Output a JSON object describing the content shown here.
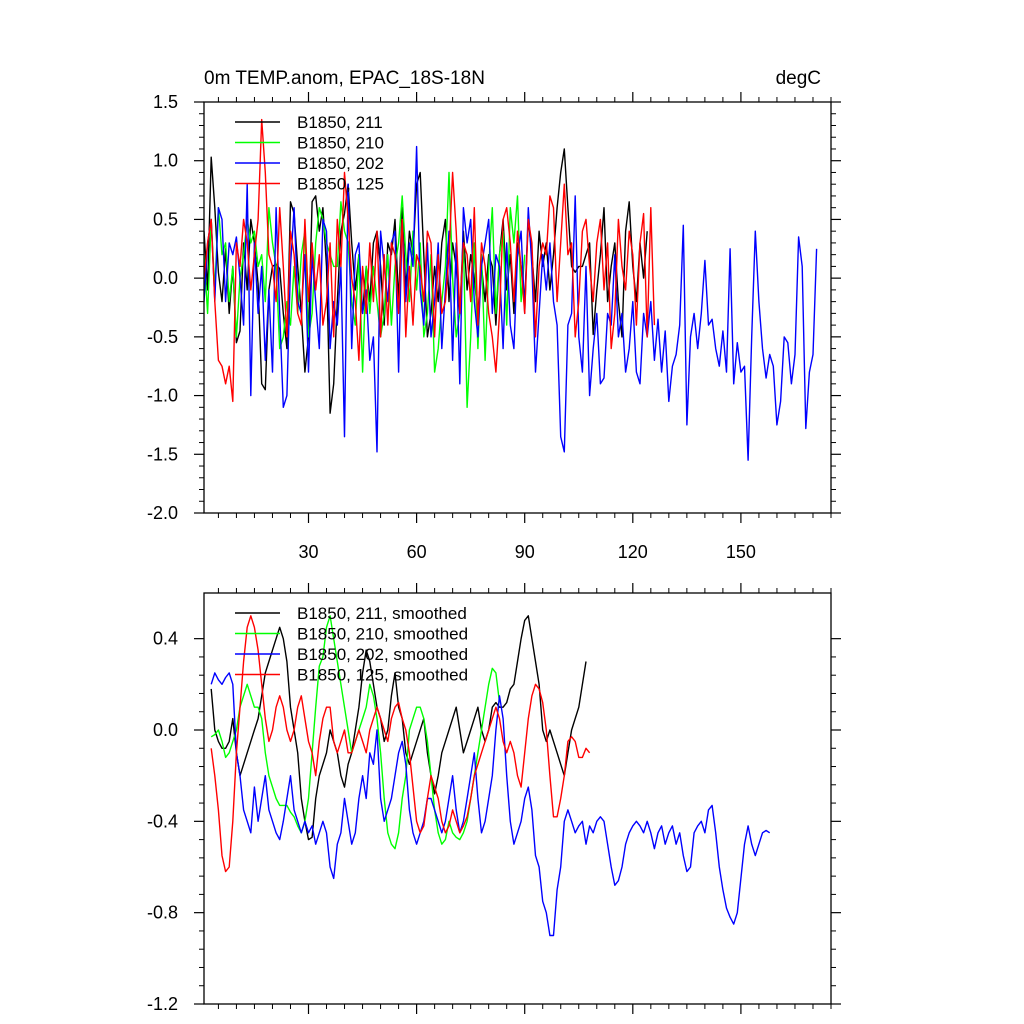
{
  "chart_data": [
    {
      "type": "line",
      "title": "0m TEMP.anom, EPAC_18S-18N",
      "units": "degC",
      "xlabel": "",
      "ylabel": "",
      "xlim": [
        1,
        175
      ],
      "ylim": [
        -2.0,
        1.5
      ],
      "x_ticks": [
        30,
        60,
        90,
        120,
        150
      ],
      "x_tick_labels": [
        "30",
        "60",
        "90",
        "120",
        "150"
      ],
      "y_ticks": [
        -2.0,
        -1.5,
        -1.0,
        -0.5,
        0.0,
        0.5,
        1.0,
        1.5
      ],
      "y_tick_labels": [
        "-2.0",
        "-1.5",
        "-1.0",
        "-0.5",
        "0.0",
        "0.5",
        "1.0",
        "1.5"
      ],
      "legend_position": "top-left",
      "series": [
        {
          "name": "B1850, 211",
          "color": "#000000",
          "x_start": 1,
          "values": [
            0.4,
            -0.1,
            1.03,
            0.6,
            0.05,
            -0.2,
            0.25,
            -0.3,
            0.1,
            -0.55,
            -0.45,
            0.3,
            -0.1,
            0.5,
            0.3,
            -0.05,
            -0.9,
            -0.95,
            -0.1,
            0.1,
            0.12,
            0.08,
            -0.3,
            -0.6,
            0.65,
            0.55,
            0.1,
            -0.3,
            -0.8,
            -0.5,
            0.65,
            0.7,
            0.4,
            0.6,
            0.1,
            -1.15,
            -0.9,
            -0.2,
            0.4,
            0.55,
            0.8,
            0.3,
            -0.1,
            0.2,
            -0.3,
            0.1,
            -0.2,
            0.3,
            0.4,
            0.1,
            -0.4,
            0.3,
            0.2,
            0.5,
            -0.2,
            0.6,
            -0.1,
            0.4,
            0.2,
            0.8,
            0.9,
            0.2,
            -0.5,
            -0.3,
            0.1,
            -0.2,
            0.3,
            0.5,
            -0.2,
            0.3,
            0.1,
            -0.3,
            0.4,
            -0.1,
            0.2,
            0.0,
            -0.3,
            0.1,
            -0.2,
            0.2,
            0.1,
            -0.4,
            0.2,
            0.5,
            -0.1,
            0.2,
            -0.3,
            0.3,
            0.1,
            -0.2,
            0.5,
            0.2,
            -0.2,
            0.4,
            0.1,
            0.3,
            -0.1,
            0.2,
            0.6,
            0.9,
            1.1,
            0.6,
            0.1,
            0.05,
            0.1,
            0.1,
            0.2,
            0.3,
            -0.48,
            -0.1,
            0.2,
            0.6,
            -0.2,
            0.1,
            0.3,
            -0.2,
            -0.5,
            0.4,
            0.65,
            0.1,
            -0.2,
            0.3,
            0.0,
            0.4
          ]
        },
        {
          "name": "B1850, 210",
          "color": "#00ff00",
          "x_start": 1,
          "values": [
            0.2,
            -0.3,
            0.5,
            -0.1,
            0.6,
            0.2,
            0.3,
            -0.2,
            0.1,
            -0.5,
            0.0,
            0.2,
            0.5,
            0.3,
            0.4,
            0.1,
            0.2,
            -0.2,
            0.6,
            0.3,
            0.1,
            -0.6,
            -0.5,
            -0.2,
            -0.4,
            0.1,
            -0.3,
            0.2,
            0.4,
            -0.5,
            -0.3,
            0.3,
            0.6,
            0.5,
            0.3,
            0.2,
            0.1,
            0.1,
            0.65,
            0.4,
            0.3,
            -0.2,
            -0.4,
            0.2,
            -0.8,
            0.1,
            -0.3,
            0.1,
            -0.2,
            -0.5,
            -0.3,
            0.2,
            -0.4,
            0.1,
            0.3,
            0.7,
            0.2,
            -0.2,
            0.4,
            -0.1,
            0.3,
            -0.5,
            -0.3,
            0.2,
            -0.8,
            -0.6,
            -0.2,
            0.1,
            0.9,
            0.0,
            -0.5,
            -0.3,
            0.3,
            -1.1,
            -0.5,
            0.3,
            -0.6,
            0.2,
            -0.7,
            0.1,
            0.6,
            -0.3,
            0.2,
            0.4,
            -0.4,
            0.6,
            0.3,
            0.7,
            -0.2,
            0.2
          ]
        },
        {
          "name": "B1850, 202",
          "color": "#0000ff",
          "x_start": 1,
          "values": [
            -0.2,
            0.3,
            0.5,
            -0.2,
            0.6,
            0.5,
            -0.2,
            0.3,
            0.2,
            0.35,
            0.0,
            -0.4,
            0.8,
            -1.0,
            0.3,
            -0.3,
            0.1,
            -0.7,
            -0.1,
            -0.8,
            0.6,
            -0.3,
            -1.1,
            -1.0,
            0.1,
            0.6,
            -0.2,
            -0.3,
            0.2,
            -0.8,
            0.2,
            -0.2,
            -0.6,
            0.5,
            0.4,
            -0.6,
            -0.2,
            -0.4,
            0.1,
            -1.35,
            0.8,
            -0.6,
            0.2,
            0.3,
            -0.3,
            -0.1,
            -0.7,
            -0.5,
            -1.48,
            0.4,
            0.1,
            -0.2,
            0.3,
            0.4,
            -0.8,
            0.5,
            -0.2,
            0.3,
            0.1,
            1.12,
            -0.1,
            -0.4,
            0.3,
            -0.5,
            -0.2,
            0.3,
            -0.6,
            -0.1,
            0.4,
            -0.7,
            0.3,
            -0.9,
            0.6,
            0.3,
            0.5,
            -0.2,
            -0.5,
            0.1,
            0.3,
            0.5,
            -0.3,
            0.2,
            0.1,
            -0.6,
            0.3,
            -0.4,
            -0.6,
            0.2,
            0.4,
            -0.3,
            0.6,
            0.1,
            -0.8,
            -0.3,
            0.2,
            -0.1,
            0.3,
            -0.2,
            -0.4,
            -1.35,
            -1.48,
            -0.4,
            -0.3,
            0.7,
            -0.5,
            -0.8,
            0.1,
            -1.0,
            -0.6,
            -0.3,
            -0.9,
            -0.85,
            -0.3,
            -0.4,
            0.2,
            -0.5,
            -0.3,
            -0.8,
            -0.6,
            -0.2,
            -0.8,
            -0.9,
            -0.3,
            -0.5,
            -0.2,
            -0.7,
            -0.35,
            -0.8,
            -0.45,
            -1.05,
            -0.75,
            -0.65,
            -0.4,
            0.45,
            -1.25,
            -0.5,
            -0.3,
            -0.6,
            -0.3,
            0.15,
            -0.4,
            -0.35,
            -0.6,
            -0.75,
            -0.45,
            -0.8,
            0.25,
            -0.9,
            -0.55,
            -0.8,
            -0.75,
            -1.55,
            -0.5,
            0.4,
            -0.2,
            -0.6,
            -0.85,
            -0.65,
            -0.75,
            -1.25,
            -1.05,
            -0.5,
            -0.55,
            -0.9,
            -0.65,
            0.35,
            0.1,
            -1.28,
            -0.8,
            -0.65,
            0.25
          ]
        },
        {
          "name": "B1850, 125",
          "color": "#ff0000",
          "x_start": 1,
          "values": [
            0.0,
            0.3,
            0.5,
            -0.2,
            -0.7,
            -0.75,
            -0.9,
            -0.75,
            -1.05,
            0.3,
            0.1,
            0.5,
            0.3,
            -0.1,
            0.2,
            0.5,
            1.35,
            0.9,
            0.2,
            0.1,
            -0.2,
            0.6,
            0.1,
            -0.5,
            0.4,
            0.2,
            -0.3,
            -0.4,
            0.5,
            -0.2,
            0.3,
            -0.1,
            0.2,
            -0.4,
            -0.2,
            0.3,
            -0.5,
            0.5,
            0.1,
            0.9,
            0.5,
            0.0,
            -0.2,
            -0.7,
            0.1,
            -0.3,
            0.3,
            -0.2,
            0.4,
            -0.5,
            0.2,
            -0.4,
            0.3,
            0.2,
            -0.3,
            0.5,
            -0.5,
            0.1,
            -0.4,
            0.2,
            0.1,
            -0.2,
            0.4,
            0.3,
            -0.5,
            0.2,
            -0.3,
            -0.2,
            0.2,
            0.9,
            0.4,
            -0.3,
            0.3,
            0.2,
            -0.2,
            0.6,
            -0.4,
            0.3,
            0.1,
            -0.3,
            -0.5,
            -0.8,
            -0.3,
            0.5,
            0.6,
            0.3,
            -0.2,
            0.4,
            0.1,
            -0.3,
            0.5,
            0.3,
            -0.5,
            0.1,
            0.3,
            0.2,
            0.7,
            0.6,
            -0.2,
            0.3,
            0.8,
            0.2,
            0.3,
            -0.5,
            -0.2,
            0.4,
            0.5,
            0.1,
            -0.2,
            0.3,
            0.5,
            -0.1,
            0.3,
            -0.6,
            -0.3,
            0.5,
            0.1,
            -0.1,
            0.4,
            0.2,
            -0.4,
            0.3,
            0.55,
            -0.5,
            0.6,
            -0.4
          ]
        }
      ]
    },
    {
      "type": "line",
      "title": "",
      "xlabel": "",
      "ylabel": "",
      "xlim": [
        1,
        175
      ],
      "ylim": [
        -1.2,
        0.6
      ],
      "x_ticks": [
        30,
        60,
        90,
        120,
        150
      ],
      "x_tick_labels": [],
      "y_ticks": [
        -1.2,
        -0.8,
        -0.4,
        0.0,
        0.4
      ],
      "y_tick_labels": [
        "-1.2",
        "-0.8",
        "-0.4",
        "0.0",
        "0.4"
      ],
      "legend_position": "top-left",
      "series": [
        {
          "name": "B1850, 211, smoothed",
          "color": "#000000",
          "x_start": 3,
          "values": [
            0.18,
            0.0,
            -0.05,
            -0.08,
            -0.08,
            -0.05,
            0.05,
            -0.1,
            -0.2,
            -0.15,
            -0.1,
            -0.05,
            0.0,
            0.05,
            0.15,
            0.25,
            0.3,
            0.35,
            0.4,
            0.45,
            0.4,
            0.3,
            0.1,
            0.0,
            -0.1,
            -0.3,
            -0.4,
            -0.48,
            -0.47,
            -0.3,
            -0.2,
            -0.15,
            -0.1,
            0.0,
            -0.05,
            -0.1,
            -0.2,
            -0.25,
            -0.15,
            -0.1,
            0.0,
            0.1,
            0.25,
            0.35,
            0.3,
            0.2,
            0.1,
            0.05,
            -0.05,
            0.0,
            0.15,
            0.25,
            0.1,
            0.05,
            -0.1,
            -0.15,
            -0.1,
            -0.05,
            0.0,
            0.05,
            -0.1,
            -0.2,
            -0.28,
            -0.2,
            -0.1,
            -0.05,
            0.0,
            0.05,
            0.1,
            0.0,
            -0.1,
            -0.05,
            0.0,
            0.05,
            0.1,
            0.0,
            -0.05,
            0.0,
            0.1,
            0.12,
            0.1,
            0.1,
            0.12,
            0.18,
            0.2,
            0.3,
            0.4,
            0.48,
            0.5,
            0.4,
            0.3,
            0.2,
            0.0,
            -0.05,
            0.0,
            -0.05,
            -0.1,
            -0.15,
            -0.2,
            -0.1,
            0.0,
            0.05,
            0.1,
            0.2,
            0.3
          ]
        },
        {
          "name": "B1850, 210, smoothed",
          "color": "#00ff00",
          "x_start": 3,
          "values": [
            -0.03,
            -0.02,
            0.0,
            -0.05,
            -0.12,
            -0.1,
            -0.05,
            0.0,
            0.1,
            0.15,
            0.2,
            0.15,
            0.1,
            0.1,
            0.05,
            -0.1,
            -0.2,
            -0.25,
            -0.3,
            -0.33,
            -0.33,
            -0.33,
            -0.36,
            -0.38,
            -0.42,
            -0.45,
            -0.4,
            -0.3,
            -0.1,
            0.1,
            0.28,
            0.32,
            0.45,
            0.5,
            0.4,
            0.3,
            0.2,
            0.1,
            0.0,
            -0.1,
            -0.05,
            0.0,
            0.05,
            0.1,
            0.2,
            0.15,
            0.05,
            -0.1,
            -0.3,
            -0.45,
            -0.5,
            -0.52,
            -0.45,
            -0.3,
            -0.2,
            0.0,
            0.05,
            0.1,
            0.1,
            0.05,
            -0.05,
            -0.2,
            -0.35,
            -0.45,
            -0.5,
            -0.48,
            -0.4,
            -0.45,
            -0.47,
            -0.48,
            -0.45,
            -0.4,
            -0.3,
            -0.2,
            -0.1,
            0.0,
            0.1,
            0.2,
            0.27,
            0.25,
            0.12
          ]
        },
        {
          "name": "B1850, 202, smoothed",
          "color": "#0000ff",
          "x_start": 3,
          "values": [
            0.2,
            0.25,
            0.22,
            0.2,
            0.23,
            0.25,
            0.2,
            -0.1,
            -0.2,
            -0.35,
            -0.4,
            -0.45,
            -0.25,
            -0.4,
            -0.3,
            -0.2,
            -0.35,
            -0.4,
            -0.45,
            -0.48,
            -0.4,
            -0.3,
            -0.2,
            -0.35,
            -0.4,
            -0.45,
            -0.4,
            -0.45,
            -0.42,
            -0.5,
            -0.45,
            -0.4,
            -0.45,
            -0.6,
            -0.65,
            -0.5,
            -0.45,
            -0.3,
            -0.4,
            -0.5,
            -0.45,
            -0.3,
            -0.2,
            -0.3,
            -0.1,
            -0.15,
            0.0,
            -0.3,
            -0.4,
            -0.35,
            -0.3,
            -0.2,
            -0.1,
            -0.05,
            -0.15,
            -0.35,
            -0.45,
            -0.5,
            -0.45,
            -0.4,
            -0.3,
            -0.3,
            -0.35,
            -0.4,
            -0.45,
            -0.4,
            -0.3,
            -0.2,
            -0.35,
            -0.45,
            -0.4,
            -0.3,
            -0.2,
            -0.1,
            -0.3,
            -0.45,
            -0.4,
            -0.3,
            -0.2,
            0.0,
            0.15,
            0.05,
            -0.2,
            -0.4,
            -0.5,
            -0.45,
            -0.4,
            -0.3,
            -0.25,
            -0.35,
            -0.55,
            -0.6,
            -0.75,
            -0.8,
            -0.9,
            -0.9,
            -0.7,
            -0.6,
            -0.4,
            -0.35,
            -0.4,
            -0.45,
            -0.42,
            -0.4,
            -0.5,
            -0.42,
            -0.45,
            -0.4,
            -0.38,
            -0.4,
            -0.5,
            -0.6,
            -0.68,
            -0.66,
            -0.6,
            -0.5,
            -0.45,
            -0.42,
            -0.4,
            -0.42,
            -0.45,
            -0.4,
            -0.45,
            -0.52,
            -0.45,
            -0.42,
            -0.5,
            -0.45,
            -0.42,
            -0.5,
            -0.45,
            -0.55,
            -0.62,
            -0.6,
            -0.45,
            -0.42,
            -0.4,
            -0.45,
            -0.35,
            -0.33,
            -0.45,
            -0.6,
            -0.7,
            -0.78,
            -0.82,
            -0.85,
            -0.8,
            -0.65,
            -0.5,
            -0.42,
            -0.5,
            -0.55,
            -0.5,
            -0.45,
            -0.44,
            -0.45
          ]
        },
        {
          "name": "B1850, 125, smoothed",
          "color": "#ff0000",
          "x_start": 3,
          "values": [
            -0.08,
            -0.2,
            -0.35,
            -0.55,
            -0.62,
            -0.6,
            -0.4,
            -0.1,
            0.1,
            0.3,
            0.45,
            0.5,
            0.45,
            0.35,
            0.2,
            0.05,
            -0.05,
            0.0,
            0.1,
            0.15,
            0.1,
            0.0,
            -0.05,
            0.0,
            0.1,
            0.15,
            0.05,
            -0.05,
            -0.1,
            -0.2,
            -0.05,
            0.05,
            0.1,
            0.1,
            -0.05,
            -0.1,
            -0.05,
            0.0,
            -0.1,
            -0.1,
            -0.05,
            0.0,
            -0.05,
            -0.1,
            0.0,
            0.05,
            0.1,
            0.05,
            0.0,
            -0.05,
            0.05,
            0.1,
            0.12,
            0.05,
            0.0,
            -0.1,
            -0.25,
            -0.4,
            -0.45,
            -0.42,
            -0.3,
            -0.2,
            -0.25,
            -0.3,
            -0.4,
            -0.45,
            -0.42,
            -0.35,
            -0.4,
            -0.45,
            -0.42,
            -0.38,
            -0.3,
            -0.2,
            -0.15,
            -0.1,
            -0.05,
            0.0,
            0.05,
            0.1,
            0.05,
            -0.05,
            -0.1,
            -0.05,
            -0.1,
            -0.2,
            -0.25,
            -0.1,
            0.05,
            0.15,
            0.2,
            0.18,
            0.12,
            0.0,
            -0.2,
            -0.38,
            -0.38,
            -0.3,
            -0.2,
            -0.05,
            -0.03,
            -0.05,
            -0.12,
            -0.12,
            -0.08,
            -0.1
          ]
        }
      ]
    }
  ]
}
